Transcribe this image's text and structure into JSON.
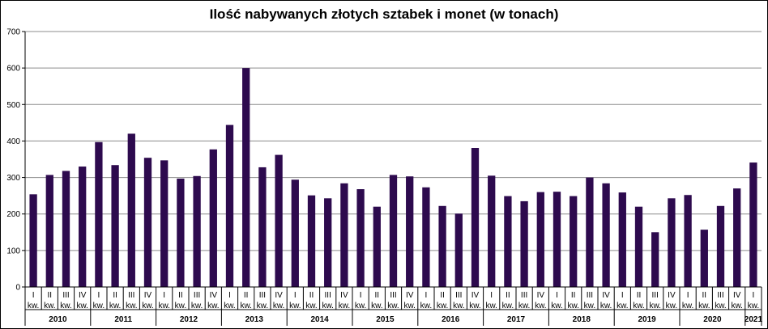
{
  "chart_data": {
    "type": "bar",
    "title": "Ilość nabywanych złotych sztabek i monet (w tonach)",
    "xlabel": "",
    "ylabel": "",
    "ylim": [
      0,
      700
    ],
    "yticks": [
      "0",
      "100",
      "200",
      "300",
      "400",
      "500",
      "600",
      "700"
    ],
    "grid": true,
    "legend": "none",
    "bar_color": "#2d0a4e",
    "quarter_suffix": "kw.",
    "categories": [
      "I",
      "II",
      "III",
      "IV",
      "I",
      "II",
      "III",
      "IV",
      "I",
      "II",
      "III",
      "IV",
      "I",
      "II",
      "III",
      "IV",
      "I",
      "II",
      "III",
      "IV",
      "I",
      "II",
      "III",
      "IV",
      "I",
      "II",
      "III",
      "IV",
      "I",
      "II",
      "III",
      "IV",
      "I",
      "II",
      "III",
      "IV",
      "I",
      "II",
      "III",
      "IV",
      "I",
      "II",
      "III",
      "IV",
      "I"
    ],
    "years": [
      {
        "label": "2010",
        "quarters": 4
      },
      {
        "label": "2011",
        "quarters": 4
      },
      {
        "label": "2012",
        "quarters": 4
      },
      {
        "label": "2013",
        "quarters": 4
      },
      {
        "label": "2014",
        "quarters": 4
      },
      {
        "label": "2015",
        "quarters": 4
      },
      {
        "label": "2016",
        "quarters": 4
      },
      {
        "label": "2017",
        "quarters": 4
      },
      {
        "label": "2018",
        "quarters": 4
      },
      {
        "label": "2019",
        "quarters": 4
      },
      {
        "label": "2020",
        "quarters": 4
      },
      {
        "label": "2021",
        "quarters": 1
      }
    ],
    "values": [
      254,
      307,
      318,
      330,
      397,
      334,
      420,
      354,
      347,
      297,
      304,
      377,
      444,
      600,
      328,
      362,
      294,
      251,
      243,
      284,
      268,
      220,
      307,
      303,
      273,
      222,
      201,
      381,
      305,
      249,
      235,
      260,
      261,
      249,
      300,
      284,
      259,
      220,
      150,
      243,
      252,
      157,
      222,
      270,
      341
    ]
  }
}
